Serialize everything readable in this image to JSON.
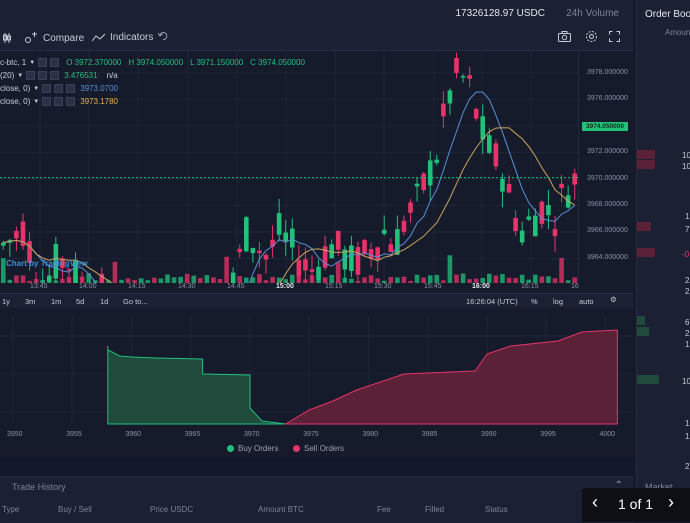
{
  "header": {
    "volume_value": "17326128.97 USDC",
    "volume_label": "24h Volume",
    "left_mark": "i"
  },
  "toolbar": {
    "compare_label": "Compare",
    "indicators_label": "Indicators"
  },
  "legend": {
    "row1_prefix": "c-btc, 1",
    "ohlc": {
      "open": "O 3972.370000",
      "high": "H 3974.050000",
      "low": "L 3971.150000",
      "close": "C 3974.050000"
    },
    "row2_prefix": "(20)",
    "row2_value": "3.476531",
    "row2_extra": "n/a",
    "row3_prefix": "close, 0)",
    "row3_value": "3973.0700",
    "row4_prefix": "close, 0)",
    "row4_value": "3973.1780"
  },
  "colors": {
    "up": "#21c17a",
    "down": "#e8336a",
    "ma_fast": "#5b8fd6",
    "ma_slow": "#c9a25b",
    "buy_fill": "#1f4a3c",
    "sell_fill": "#5a2137"
  },
  "watermark": "Chart by TradingView",
  "price_axis": [
    "3978.000000",
    "3976.000000",
    "3974.000000",
    "3972.000000",
    "3970.000000",
    "3968.000000",
    "3966.000000",
    "3964.000000"
  ],
  "current_price": "3974.050000",
  "time_axis": [
    "13:45",
    "14:00",
    "14:15",
    "14:30",
    "14:45",
    "15:00",
    "15:15",
    "15:30",
    "15:45",
    "16:00",
    "16:15",
    "16"
  ],
  "range_bar": {
    "ranges": [
      "1y",
      "3m",
      "1m",
      "5d",
      "1d",
      "Go to..."
    ],
    "clock": "16:26:04 (UTC)",
    "percent": "%",
    "log": "log",
    "auto": "auto"
  },
  "depth": {
    "x_ticks": [
      "3950",
      "3955",
      "3960",
      "3965",
      "3970",
      "3975",
      "3980",
      "3985",
      "3990",
      "3995",
      "4000"
    ],
    "buy_label": "Buy Orders",
    "sell_label": "Sell Orders"
  },
  "trade_history": {
    "title": "Trade History",
    "columns": [
      "Type",
      "Buy / Sell",
      "Price USDC",
      "Amount BTC",
      "Fee",
      "Filled",
      "Status"
    ]
  },
  "order_book": {
    "title": "Order Book",
    "amount_header": "Amoun",
    "numbers": [
      {
        "text": "10",
        "color": "#c8ccd8"
      },
      {
        "text": "10",
        "color": "#c8ccd8"
      },
      {
        "text": "1",
        "color": "#c8ccd8"
      },
      {
        "text": "7",
        "color": "#c8ccd8"
      },
      {
        "text": "-0",
        "color": "#e8336a"
      },
      {
        "text": "2",
        "color": "#c8ccd8"
      },
      {
        "text": "2",
        "color": "#c8ccd8"
      },
      {
        "text": "6",
        "color": "#c8ccd8"
      },
      {
        "text": "2",
        "color": "#c8ccd8"
      },
      {
        "text": "1",
        "color": "#c8ccd8"
      },
      {
        "text": "10",
        "color": "#c8ccd8"
      },
      {
        "text": "1",
        "color": "#c8ccd8"
      },
      {
        "text": "1",
        "color": "#c8ccd8"
      },
      {
        "text": "2",
        "color": "#c8ccd8"
      }
    ],
    "market_label": "Market"
  },
  "pager": {
    "text": "1 of 1"
  }
}
